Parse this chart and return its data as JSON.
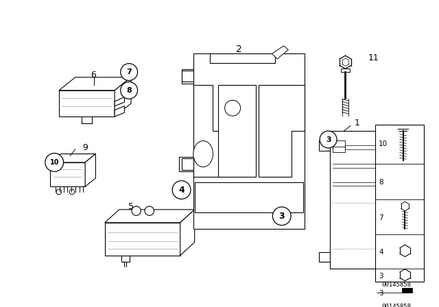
{
  "bg_color": "#ffffff",
  "fig_width": 6.4,
  "fig_height": 4.48,
  "dpi": 100,
  "part_number": "00145858",
  "line_color": "#000000"
}
